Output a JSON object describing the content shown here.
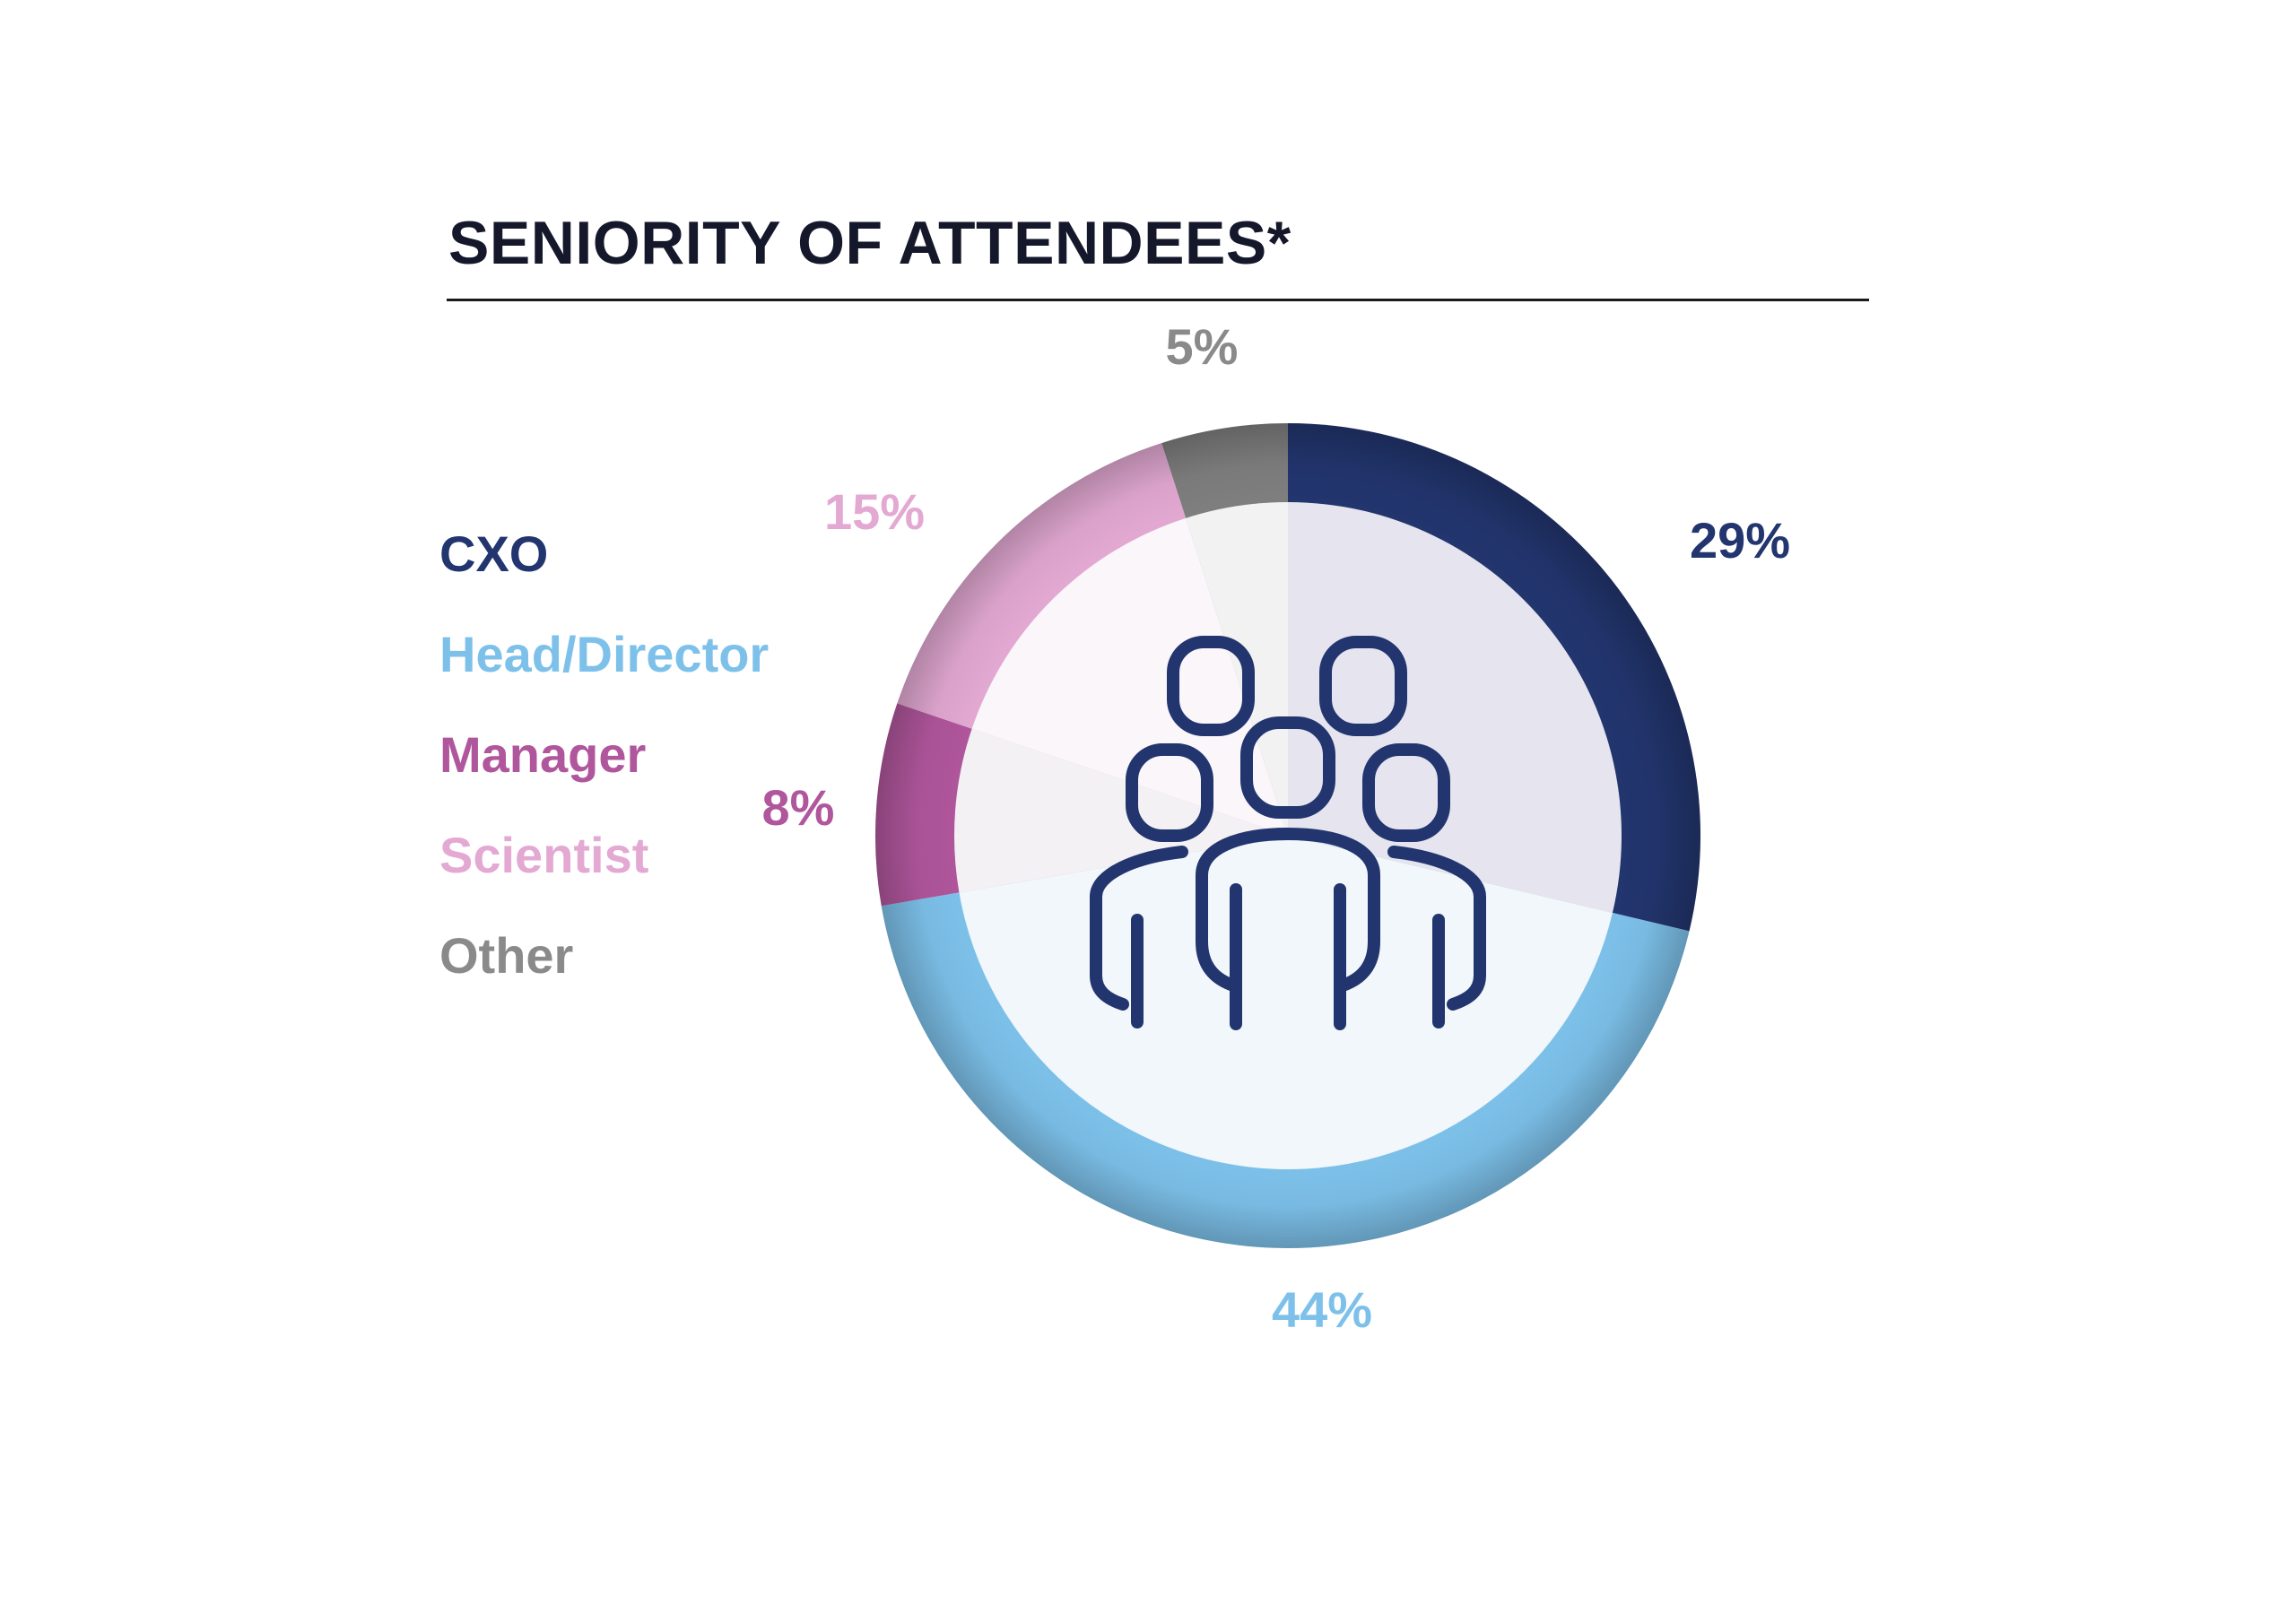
{
  "chart_data": {
    "type": "pie",
    "title": "SENIORITY OF ATTENDEES*",
    "categories": [
      "CXO",
      "Head/Director",
      "Manager",
      "Scientist",
      "Other"
    ],
    "values": [
      29,
      44,
      8,
      15,
      5
    ],
    "labels": [
      "29%",
      "44%",
      "8%",
      "15%",
      "5%"
    ],
    "colors": [
      "#22356e",
      "#7dc1ea",
      "#b0569c",
      "#e3a9d3",
      "#7f7f7f"
    ],
    "inner_colors": [
      "#e6e5ef",
      "#f1f7fb",
      "#f4f1f5",
      "#faf6fa",
      "#f2f2f2"
    ],
    "label_colors": [
      "#22356e",
      "#7dc1ea",
      "#b0569c",
      "#e3a9d3",
      "#8a8a8a"
    ],
    "legend": "left",
    "center_icon": "group-people-icon",
    "icon_color": "#22356e"
  }
}
